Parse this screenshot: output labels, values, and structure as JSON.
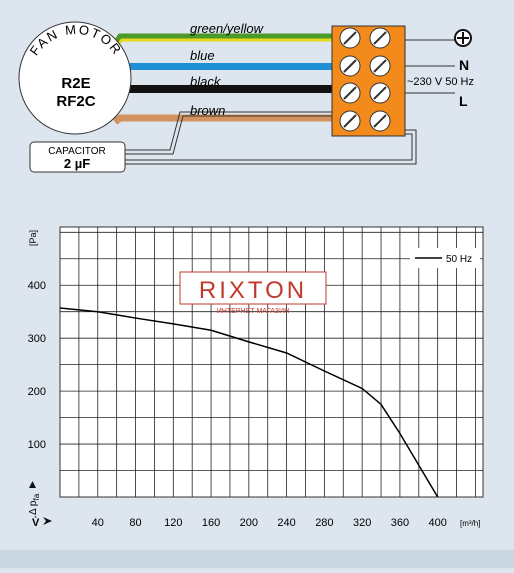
{
  "diagram": {
    "motor_label": "FAN MOTOR",
    "model_1": "R2E",
    "model_2": "RF2C",
    "wires": [
      {
        "label": "green/yellow"
      },
      {
        "label": "blue"
      },
      {
        "label": "black"
      },
      {
        "label": "brown"
      }
    ],
    "capacitor_label": "CAPACITOR",
    "capacitor_value": "2 µF",
    "terminal_n": "N",
    "supply": "~230 V 50 Hz",
    "terminal_l": "L"
  },
  "chart_data": {
    "type": "line",
    "ylabel": "[Pa]",
    "ylabel_symbol": "Δ p",
    "ylabel_symbol_sub": "fa",
    "xlabel_symbol": "V̇",
    "xunit": "[m³/h]",
    "watermark": "RIXTON",
    "watermark_sub": "ИНТЕРНЕТ МАГАЗИН",
    "xlim": [
      0,
      448
    ],
    "ylim": [
      0,
      510
    ],
    "xticks": [
      40,
      80,
      120,
      160,
      200,
      240,
      280,
      320,
      360,
      400
    ],
    "yticks": [
      100,
      200,
      300,
      400
    ],
    "grid": true,
    "legend": "upper right",
    "series": [
      {
        "name": "50 Hz",
        "color": "#000000",
        "x": [
          0,
          40,
          80,
          120,
          160,
          200,
          240,
          280,
          320,
          340,
          360,
          380,
          400
        ],
        "values": [
          357,
          350,
          338,
          327,
          315,
          293,
          272,
          238,
          205,
          175,
          120,
          60,
          0
        ]
      }
    ]
  }
}
